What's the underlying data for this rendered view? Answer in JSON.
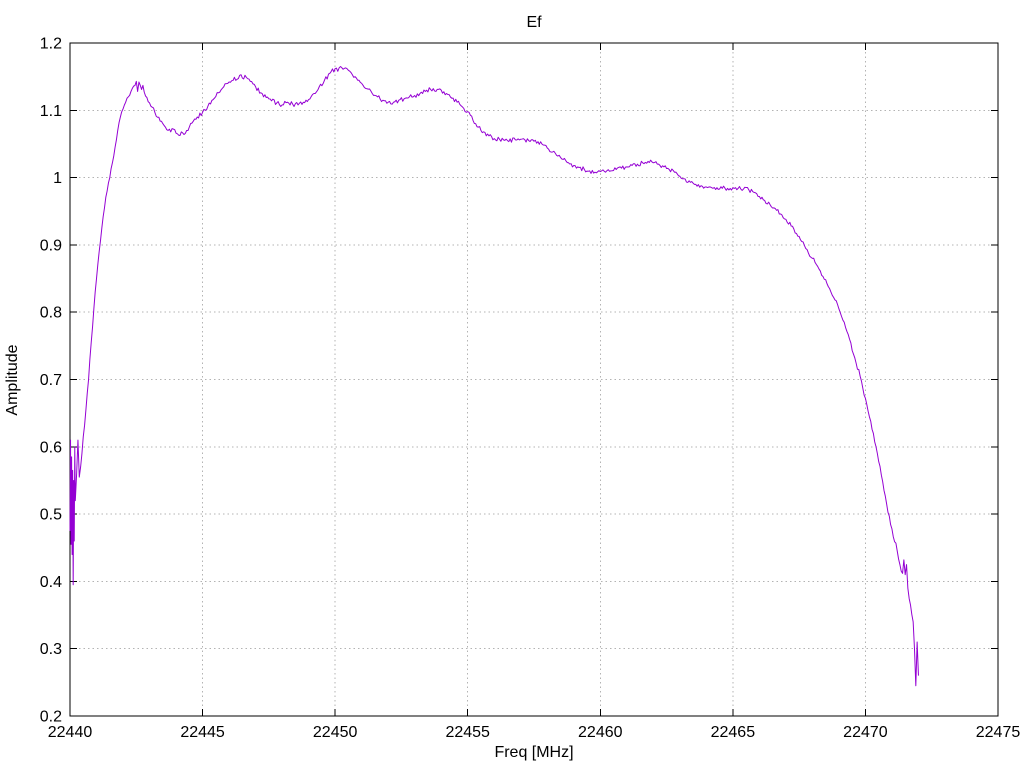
{
  "chart_data": {
    "type": "line",
    "title": "Ef",
    "xlabel": "Freq [MHz]",
    "ylabel": "Amplitude",
    "xlim": [
      22440,
      22475
    ],
    "ylim": [
      0.2,
      1.2
    ],
    "x_ticks": [
      22440,
      22445,
      22450,
      22455,
      22460,
      22465,
      22470,
      22475
    ],
    "x_tick_labels": [
      "22440",
      "22445",
      "22450",
      "22455",
      "22460",
      "22465",
      "22470",
      "22475"
    ],
    "y_ticks": [
      0.2,
      0.3,
      0.4,
      0.5,
      0.6,
      0.7,
      0.8,
      0.9,
      1.0,
      1.1,
      1.2
    ],
    "y_tick_labels": [
      "0.2",
      "0.3",
      "0.4",
      "0.5",
      "0.6",
      "0.7",
      "0.8",
      "0.9",
      "1",
      "1.1",
      "1.2"
    ],
    "grid": true,
    "grid_style": "dotted",
    "legend": "none",
    "noise_amplitude": 0.0035,
    "colors": {
      "line": "#9400d3",
      "border": "#000000",
      "grid": "#b3b3b3",
      "text": "#000000",
      "background": "#ffffff"
    },
    "series": [
      {
        "name": "Ef",
        "color": "#9400d3",
        "points": [
          [
            22440.0,
            0.475
          ],
          [
            22440.02,
            0.61
          ],
          [
            22440.04,
            0.455
          ],
          [
            22440.06,
            0.585
          ],
          [
            22440.08,
            0.44
          ],
          [
            22440.1,
            0.565
          ],
          [
            22440.12,
            0.395
          ],
          [
            22440.14,
            0.55
          ],
          [
            22440.16,
            0.46
          ],
          [
            22440.18,
            0.6
          ],
          [
            22440.2,
            0.52
          ],
          [
            22440.25,
            0.56
          ],
          [
            22440.3,
            0.61
          ],
          [
            22440.35,
            0.555
          ],
          [
            22440.4,
            0.57
          ],
          [
            22440.45,
            0.59
          ],
          [
            22440.5,
            0.615
          ],
          [
            22440.6,
            0.655
          ],
          [
            22440.7,
            0.7
          ],
          [
            22440.8,
            0.755
          ],
          [
            22440.9,
            0.805
          ],
          [
            22441.0,
            0.85
          ],
          [
            22441.1,
            0.89
          ],
          [
            22441.2,
            0.925
          ],
          [
            22441.3,
            0.955
          ],
          [
            22441.4,
            0.98
          ],
          [
            22441.5,
            1.0
          ],
          [
            22441.6,
            1.022
          ],
          [
            22441.7,
            1.045
          ],
          [
            22441.8,
            1.07
          ],
          [
            22441.9,
            1.09
          ],
          [
            22442.0,
            1.102
          ],
          [
            22442.1,
            1.112
          ],
          [
            22442.2,
            1.12
          ],
          [
            22442.3,
            1.128
          ],
          [
            22442.4,
            1.136
          ],
          [
            22442.5,
            1.143
          ],
          [
            22442.55,
            1.128
          ],
          [
            22442.6,
            1.142
          ],
          [
            22442.7,
            1.131
          ],
          [
            22442.75,
            1.137
          ],
          [
            22442.8,
            1.127
          ],
          [
            22442.9,
            1.119
          ],
          [
            22443.0,
            1.111
          ],
          [
            22443.2,
            1.097
          ],
          [
            22443.4,
            1.084
          ],
          [
            22443.6,
            1.075
          ],
          [
            22443.8,
            1.068
          ],
          [
            22443.9,
            1.072
          ],
          [
            22444.0,
            1.066
          ],
          [
            22444.1,
            1.063
          ],
          [
            22444.2,
            1.068
          ],
          [
            22444.3,
            1.064
          ],
          [
            22444.4,
            1.07
          ],
          [
            22444.5,
            1.075
          ],
          [
            22444.6,
            1.081
          ],
          [
            22444.8,
            1.09
          ],
          [
            22445.0,
            1.097
          ],
          [
            22445.2,
            1.106
          ],
          [
            22445.4,
            1.116
          ],
          [
            22445.6,
            1.126
          ],
          [
            22445.8,
            1.135
          ],
          [
            22446.0,
            1.142
          ],
          [
            22446.2,
            1.149
          ],
          [
            22446.3,
            1.146
          ],
          [
            22446.4,
            1.152
          ],
          [
            22446.5,
            1.148
          ],
          [
            22446.6,
            1.152
          ],
          [
            22446.7,
            1.147
          ],
          [
            22446.8,
            1.143
          ],
          [
            22447.0,
            1.135
          ],
          [
            22447.2,
            1.126
          ],
          [
            22447.4,
            1.119
          ],
          [
            22447.6,
            1.114
          ],
          [
            22447.8,
            1.111
          ],
          [
            22448.0,
            1.108
          ],
          [
            22448.2,
            1.112
          ],
          [
            22448.4,
            1.109
          ],
          [
            22448.6,
            1.108
          ],
          [
            22448.8,
            1.112
          ],
          [
            22449.0,
            1.116
          ],
          [
            22449.2,
            1.125
          ],
          [
            22449.4,
            1.135
          ],
          [
            22449.6,
            1.145
          ],
          [
            22449.8,
            1.155
          ],
          [
            22450.0,
            1.162
          ],
          [
            22450.1,
            1.158
          ],
          [
            22450.2,
            1.165
          ],
          [
            22450.3,
            1.161
          ],
          [
            22450.4,
            1.163
          ],
          [
            22450.6,
            1.156
          ],
          [
            22450.8,
            1.148
          ],
          [
            22451.0,
            1.14
          ],
          [
            22451.2,
            1.132
          ],
          [
            22451.4,
            1.125
          ],
          [
            22451.6,
            1.12
          ],
          [
            22451.8,
            1.115
          ],
          [
            22452.0,
            1.112
          ],
          [
            22452.2,
            1.112
          ],
          [
            22452.4,
            1.115
          ],
          [
            22452.6,
            1.117
          ],
          [
            22452.8,
            1.12
          ],
          [
            22453.0,
            1.122
          ],
          [
            22453.2,
            1.125
          ],
          [
            22453.4,
            1.128
          ],
          [
            22453.6,
            1.131
          ],
          [
            22453.8,
            1.128
          ],
          [
            22454.0,
            1.13
          ],
          [
            22454.2,
            1.125
          ],
          [
            22454.4,
            1.118
          ],
          [
            22454.6,
            1.112
          ],
          [
            22454.8,
            1.105
          ],
          [
            22455.0,
            1.098
          ],
          [
            22455.2,
            1.085
          ],
          [
            22455.4,
            1.075
          ],
          [
            22455.6,
            1.068
          ],
          [
            22455.8,
            1.062
          ],
          [
            22456.0,
            1.058
          ],
          [
            22456.2,
            1.057
          ],
          [
            22456.5,
            1.055
          ],
          [
            22456.8,
            1.056
          ],
          [
            22457.0,
            1.057
          ],
          [
            22457.3,
            1.055
          ],
          [
            22457.5,
            1.054
          ],
          [
            22457.8,
            1.05
          ],
          [
            22458.0,
            1.044
          ],
          [
            22458.2,
            1.038
          ],
          [
            22458.4,
            1.032
          ],
          [
            22458.6,
            1.027
          ],
          [
            22458.8,
            1.022
          ],
          [
            22459.0,
            1.018
          ],
          [
            22459.2,
            1.015
          ],
          [
            22459.4,
            1.012
          ],
          [
            22459.6,
            1.01
          ],
          [
            22459.8,
            1.008
          ],
          [
            22460.0,
            1.009
          ],
          [
            22460.2,
            1.008
          ],
          [
            22460.4,
            1.01
          ],
          [
            22460.6,
            1.012
          ],
          [
            22460.8,
            1.014
          ],
          [
            22461.0,
            1.016
          ],
          [
            22461.2,
            1.018
          ],
          [
            22461.4,
            1.02
          ],
          [
            22461.6,
            1.022
          ],
          [
            22461.8,
            1.024
          ],
          [
            22462.0,
            1.022
          ],
          [
            22462.2,
            1.02
          ],
          [
            22462.4,
            1.016
          ],
          [
            22462.6,
            1.012
          ],
          [
            22462.8,
            1.008
          ],
          [
            22463.0,
            1.002
          ],
          [
            22463.2,
            0.998
          ],
          [
            22463.4,
            0.993
          ],
          [
            22463.6,
            0.99
          ],
          [
            22463.8,
            0.988
          ],
          [
            22464.0,
            0.986
          ],
          [
            22464.2,
            0.985
          ],
          [
            22464.4,
            0.985
          ],
          [
            22464.6,
            0.984
          ],
          [
            22464.8,
            0.984
          ],
          [
            22465.0,
            0.985
          ],
          [
            22465.2,
            0.984
          ],
          [
            22465.4,
            0.983
          ],
          [
            22465.6,
            0.982
          ],
          [
            22465.8,
            0.978
          ],
          [
            22466.0,
            0.972
          ],
          [
            22466.2,
            0.966
          ],
          [
            22466.4,
            0.96
          ],
          [
            22466.6,
            0.954
          ],
          [
            22466.8,
            0.946
          ],
          [
            22467.0,
            0.938
          ],
          [
            22467.2,
            0.928
          ],
          [
            22467.4,
            0.917
          ],
          [
            22467.6,
            0.905
          ],
          [
            22467.8,
            0.893
          ],
          [
            22468.0,
            0.88
          ],
          [
            22468.2,
            0.868
          ],
          [
            22468.4,
            0.853
          ],
          [
            22468.6,
            0.838
          ],
          [
            22468.8,
            0.822
          ],
          [
            22469.0,
            0.805
          ],
          [
            22469.2,
            0.785
          ],
          [
            22469.4,
            0.76
          ],
          [
            22469.6,
            0.732
          ],
          [
            22469.8,
            0.705
          ],
          [
            22470.0,
            0.672
          ],
          [
            22470.2,
            0.638
          ],
          [
            22470.4,
            0.6
          ],
          [
            22470.6,
            0.558
          ],
          [
            22470.8,
            0.515
          ],
          [
            22471.0,
            0.478
          ],
          [
            22471.2,
            0.445
          ],
          [
            22471.3,
            0.425
          ],
          [
            22471.4,
            0.412
          ],
          [
            22471.45,
            0.432
          ],
          [
            22471.5,
            0.41
          ],
          [
            22471.55,
            0.425
          ],
          [
            22471.6,
            0.39
          ],
          [
            22471.7,
            0.365
          ],
          [
            22471.8,
            0.34
          ],
          [
            22471.85,
            0.3
          ],
          [
            22471.9,
            0.245
          ],
          [
            22471.95,
            0.31
          ],
          [
            22472.0,
            0.26
          ]
        ]
      }
    ]
  }
}
